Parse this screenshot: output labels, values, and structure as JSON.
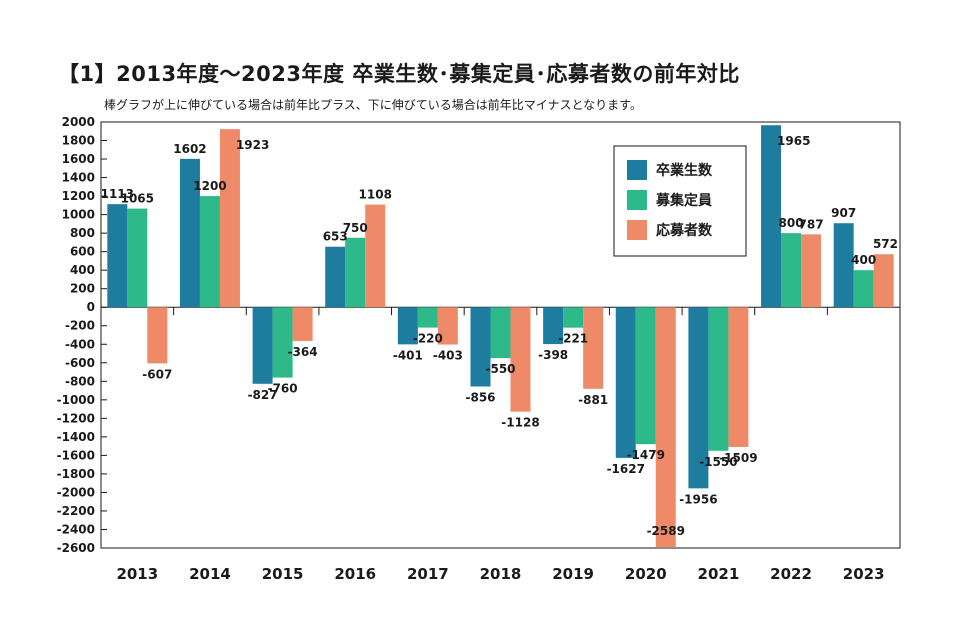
{
  "header": {
    "title": "【1】2013年度〜2023年度 卒業生数･募集定員･応募者数の前年対比",
    "subtitle": "棒グラフが上に伸びている場合は前年比プラス、下に伸びている場合は前年比マイナスとなります。"
  },
  "colors": {
    "series_1": "#1e7d9e",
    "series_2": "#2db98a",
    "series_3": "#ef8a68"
  },
  "chart_data": {
    "type": "bar",
    "title": "【1】2013年度〜2023年度 卒業生数･募集定員･応募者数の前年対比",
    "subtitle": "棒グラフが上に伸びている場合は前年比プラス、下に伸びている場合は前年比マイナスとなります。",
    "xlabel": "",
    "ylabel": "",
    "ylim": [
      -2600,
      2000
    ],
    "yticks": [
      2000,
      1800,
      1600,
      1400,
      1200,
      1000,
      800,
      600,
      400,
      200,
      0,
      -200,
      -400,
      -600,
      -800,
      -1000,
      -1200,
      -1400,
      -1600,
      -1800,
      -2000,
      -2200,
      -2400,
      -2600
    ],
    "grid": false,
    "legend": "top-right",
    "categories": [
      "2013",
      "2014",
      "2015",
      "2016",
      "2017",
      "2018",
      "2019",
      "2020",
      "2021",
      "2022",
      "2023"
    ],
    "series": [
      {
        "name": "卒業生数",
        "values": [
          1113,
          1602,
          -827,
          653,
          -401,
          -856,
          -398,
          -1627,
          -1956,
          1965,
          907
        ]
      },
      {
        "name": "募集定員",
        "values": [
          1065,
          1200,
          -760,
          750,
          -220,
          -550,
          -221,
          -1479,
          -1550,
          800,
          400
        ]
      },
      {
        "name": "応募者数",
        "values": [
          -607,
          1923,
          -364,
          1108,
          -403,
          -1128,
          -881,
          -2589,
          -1509,
          787,
          572
        ]
      }
    ]
  }
}
